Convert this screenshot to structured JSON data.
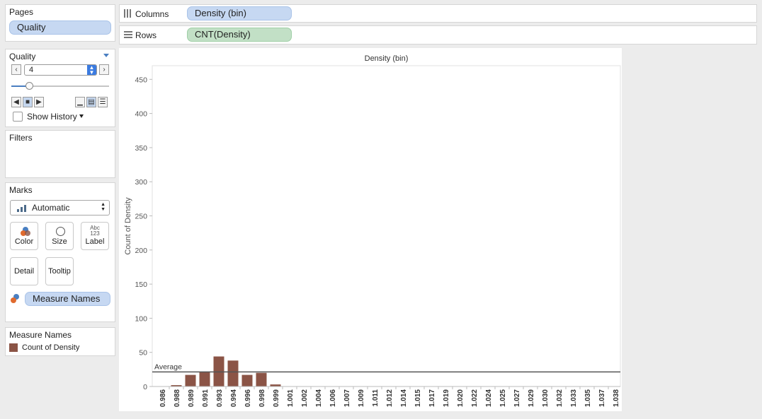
{
  "pages": {
    "title": "Pages",
    "pill": "Quality"
  },
  "quality_card": {
    "title": "Quality",
    "value": "4",
    "prev_icon": "chevron-left-icon",
    "next_icon": "chevron-right-icon",
    "slider_level": 0.18,
    "show_history_label": "Show History"
  },
  "filters": {
    "title": "Filters"
  },
  "marks": {
    "title": "Marks",
    "type_label": "Automatic",
    "buttons": {
      "color": "Color",
      "size": "Size",
      "label": "Label",
      "detail": "Detail",
      "tooltip": "Tooltip"
    },
    "label_icon_text_top": "Abc",
    "label_icon_text_bottom": "123",
    "measure_names_pill": "Measure Names"
  },
  "legend": {
    "title": "Measure Names",
    "item": "Count of Density",
    "color": "#8b5446"
  },
  "shelves": {
    "columns_label": "Columns",
    "columns_pill": "Density (bin)",
    "rows_label": "Rows",
    "rows_pill": "CNT(Density)"
  },
  "chart_data": {
    "type": "bar",
    "title": "Density (bin)",
    "ylabel": "Count of Density",
    "ylim": [
      0,
      470
    ],
    "yticks": [
      0,
      50,
      100,
      150,
      200,
      250,
      300,
      350,
      400,
      450
    ],
    "categories": [
      "0.986",
      "0.988",
      "0.989",
      "0.991",
      "0.993",
      "0.994",
      "0.996",
      "0.998",
      "0.999",
      "1.001",
      "1.002",
      "1.004",
      "1.006",
      "1.007",
      "1.009",
      "1.011",
      "1.012",
      "1.014",
      "1.015",
      "1.017",
      "1.019",
      "1.020",
      "1.022",
      "1.024",
      "1.025",
      "1.027",
      "1.029",
      "1.030",
      "1.032",
      "1.033",
      "1.035",
      "1.037",
      "1.038"
    ],
    "values": [
      0,
      2,
      17,
      21,
      44,
      38,
      17,
      20,
      3,
      0,
      0,
      0,
      0,
      0,
      0,
      0,
      0,
      0,
      0,
      0,
      0,
      0,
      0,
      0,
      0,
      0,
      0,
      0,
      0,
      0,
      0,
      0,
      0
    ],
    "bar_color": "#8b5446",
    "reference_line": {
      "label": "Average",
      "value": 21.4
    },
    "grid": false
  }
}
